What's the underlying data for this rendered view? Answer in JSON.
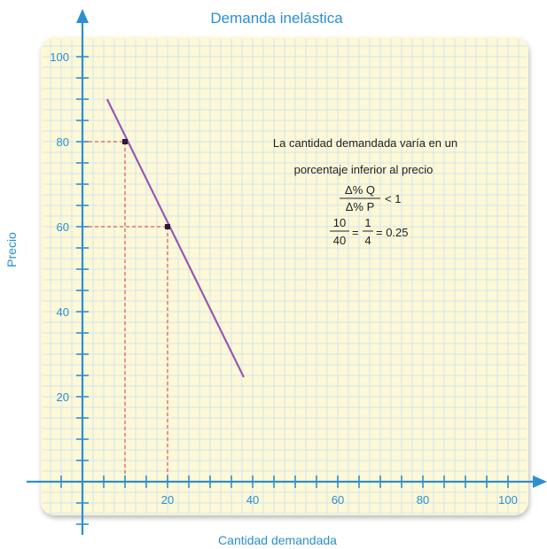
{
  "chart_data": {
    "type": "line",
    "title": "Demanda inelástica",
    "xlabel": "Cantidad demandada",
    "ylabel": "Precio",
    "xlim": [
      -10,
      105
    ],
    "ylim": [
      -12,
      106
    ],
    "x_ticks": [
      20,
      40,
      60,
      80,
      100
    ],
    "y_ticks": [
      20,
      40,
      60,
      80,
      100
    ],
    "x_tick_labels": [
      "20",
      "40",
      "60",
      "80",
      "100"
    ],
    "y_tick_labels": [
      "20",
      "40",
      "60",
      "80",
      "100"
    ],
    "grid": true,
    "series": [
      {
        "x": [
          5.8,
          37.9
        ],
        "y": [
          90,
          24.6
        ]
      }
    ],
    "highlighted_points": [
      {
        "x": 10,
        "y": 80
      },
      {
        "x": 20,
        "y": 60
      }
    ],
    "annotation": {
      "line1": "La cantidad demandada varía en un",
      "line2": "porcentaje inferior al precio",
      "frac1_num": "Δ% Q",
      "frac1_den": "Δ% P",
      "ineq": "< 1",
      "frac2_num": "10",
      "frac2_den": "40",
      "eq1": "=",
      "frac3_num": "1",
      "frac3_den": "4",
      "result": "= 0.25"
    },
    "colors": {
      "panel": "#fdf8d6",
      "grid": "#d4e4ef",
      "axis": "#2b8fd0",
      "curve": "#9b57b3",
      "guide": "#e0303a",
      "marker": "#2a1a3a"
    }
  }
}
